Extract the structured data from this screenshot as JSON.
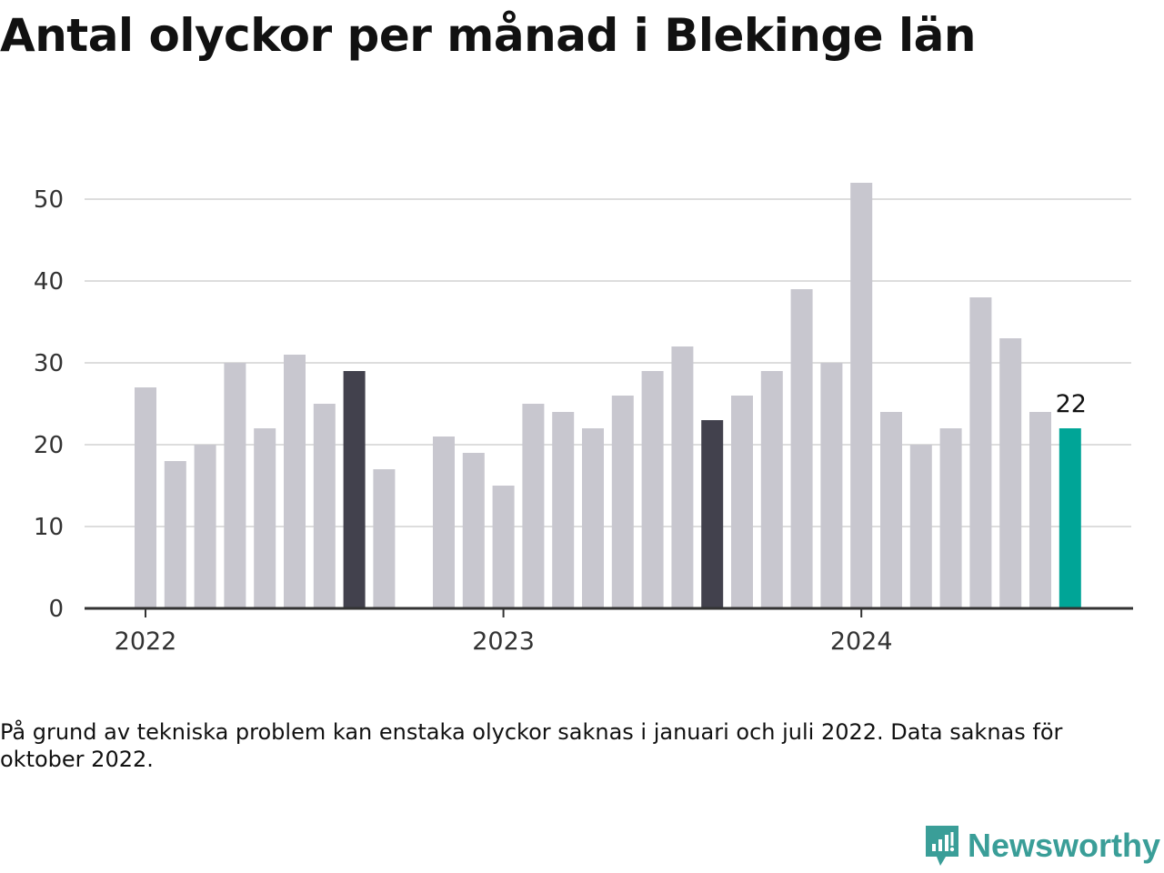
{
  "title": "Antal olyckor per månad i Blekinge län",
  "note": "På grund av tekniska problem kan enstaka olyckor saknas i januari och juli 2022. Data saknas för oktober 2022.",
  "brand": {
    "name": "Newsworthy",
    "color": "#3a9e98"
  },
  "colors": {
    "default": "#c8c7cf",
    "highlight": "#42414d",
    "latest": "#00a597",
    "grid": "#dddddd",
    "axis": "#333333"
  },
  "chart_data": {
    "type": "bar",
    "title": "Antal olyckor per månad i Blekinge län",
    "xlabel": "",
    "ylabel": "",
    "ylim": [
      0,
      52
    ],
    "yticks": [
      0,
      10,
      20,
      30,
      40,
      50
    ],
    "xtick_labels": [
      "2022",
      "2023",
      "2024"
    ],
    "grid": true,
    "categories": [
      "2022-01",
      "2022-02",
      "2022-03",
      "2022-04",
      "2022-05",
      "2022-06",
      "2022-07",
      "2022-08",
      "2022-09",
      "2022-10",
      "2022-11",
      "2022-12",
      "2023-01",
      "2023-02",
      "2023-03",
      "2023-04",
      "2023-05",
      "2023-06",
      "2023-07",
      "2023-08",
      "2023-09",
      "2023-10",
      "2023-11",
      "2023-12",
      "2024-01",
      "2024-02",
      "2024-03",
      "2024-04",
      "2024-05",
      "2024-06",
      "2024-07",
      "2024-08"
    ],
    "values": [
      27,
      18,
      20,
      30,
      22,
      31,
      25,
      29,
      17,
      null,
      21,
      19,
      15,
      25,
      24,
      22,
      26,
      29,
      32,
      23,
      26,
      29,
      39,
      30,
      52,
      24,
      20,
      22,
      38,
      33,
      24,
      22
    ],
    "highlighted": [
      "2022-08",
      "2023-08"
    ],
    "latest": "2024-08",
    "latest_label": "22"
  }
}
